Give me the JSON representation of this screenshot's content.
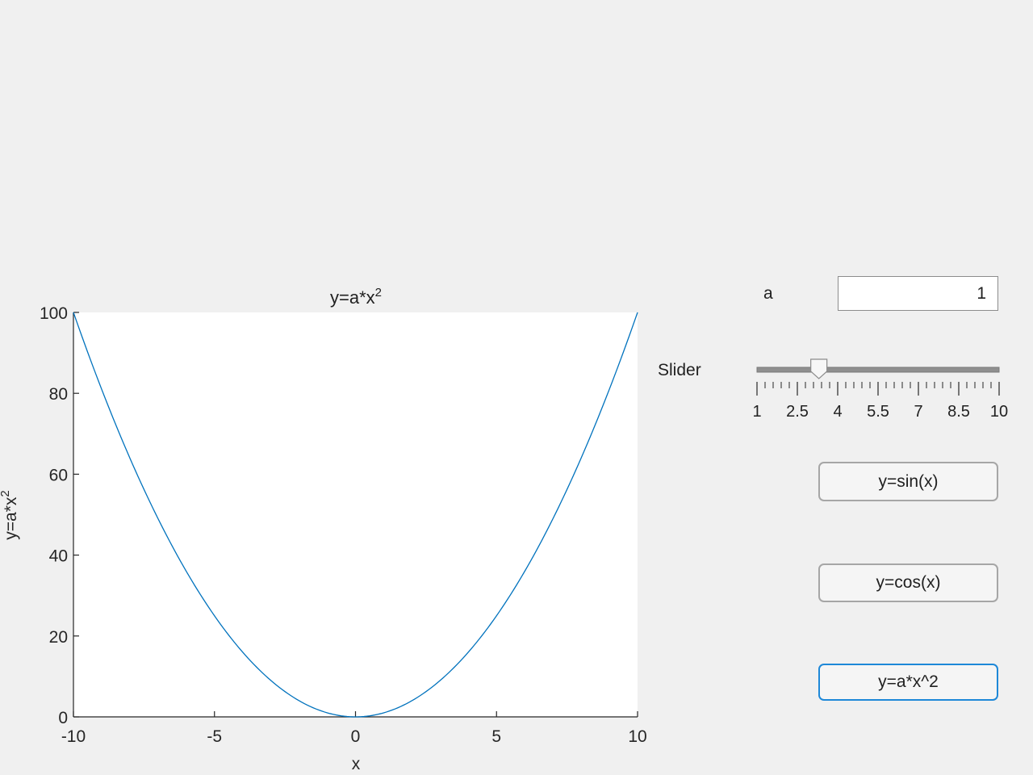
{
  "controls": {
    "a_label": "a",
    "a_value": "1",
    "slider_label": "Slider",
    "slider": {
      "min": 1,
      "max": 10,
      "value": 3.3,
      "major_ticks": [
        "1",
        "2.5",
        "4",
        "5.5",
        "7",
        "8.5",
        "10"
      ],
      "major_tick_values": [
        1,
        2.5,
        4,
        5.5,
        7,
        8.5,
        10
      ]
    },
    "buttons": {
      "sin_label": "y=sin(x)",
      "cos_label": "y=cos(x)",
      "ax2_label": "y=a*x^2"
    },
    "colors": {
      "focus_border": "#1e88d8"
    }
  },
  "chart_data": {
    "type": "line",
    "title": "y=a*x",
    "title_sup": "2",
    "xlabel": "x",
    "ylabel": "y=a*x",
    "ylabel_sup": "2",
    "xlim": [
      -10,
      10
    ],
    "ylim": [
      0,
      100
    ],
    "xticks": [
      "-10",
      "-5",
      "0",
      "5",
      "10"
    ],
    "xtick_values": [
      -10,
      -5,
      0,
      5,
      10
    ],
    "yticks": [
      "0",
      "20",
      "40",
      "60",
      "80",
      "100"
    ],
    "ytick_values": [
      0,
      20,
      40,
      60,
      80,
      100
    ],
    "series": [
      {
        "color": "#0072bd",
        "x": [
          -10,
          -9,
          -8,
          -7,
          -6,
          -5,
          -4,
          -3,
          -2,
          -1,
          0,
          1,
          2,
          3,
          4,
          5,
          6,
          7,
          8,
          9,
          10
        ],
        "y": [
          100,
          81,
          64,
          49,
          36,
          25,
          16,
          9,
          4,
          1,
          0,
          1,
          4,
          9,
          16,
          25,
          36,
          49,
          64,
          81,
          100
        ]
      }
    ],
    "grid": false,
    "legend": false
  }
}
